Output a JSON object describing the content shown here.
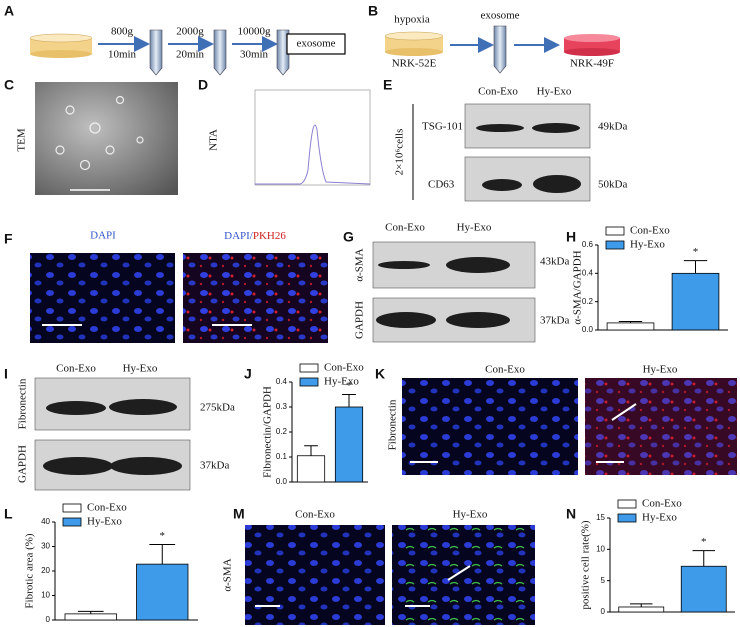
{
  "panels": {
    "A": {
      "label": "A",
      "steps": [
        {
          "speed": "800g",
          "time": "10min"
        },
        {
          "speed": "2000g",
          "time": "20min"
        },
        {
          "speed": "10000g",
          "time": "30min"
        }
      ],
      "product": "exosome"
    },
    "B": {
      "label": "B",
      "condition": "hypoxia",
      "source": "NRK-52E",
      "vehicle": "exosome",
      "target": "NRK-49F"
    },
    "C": {
      "label": "C",
      "method": "TEM"
    },
    "D": {
      "label": "D",
      "method": "NTA"
    },
    "E": {
      "label": "E",
      "groups": [
        "Con-Exo",
        "Hy-Exo"
      ],
      "amount": "2×10⁶cells",
      "markers": [
        {
          "name": "TSG-101",
          "size": "49kDa"
        },
        {
          "name": "CD63",
          "size": "50kDa"
        }
      ]
    },
    "F": {
      "label": "F",
      "stain1": "DAPI",
      "stain2a": "DAPI/",
      "stain2b": "PKH26"
    },
    "G": {
      "label": "G",
      "groups": [
        "Con-Exo",
        "Hy-Exo"
      ],
      "markers": [
        {
          "name": "α-SMA",
          "size": "43kDa"
        },
        {
          "name": "GAPDH",
          "size": "37kDa"
        }
      ]
    },
    "I": {
      "label": "I",
      "groups": [
        "Con-Exo",
        "Hy-Exo"
      ],
      "markers": [
        {
          "name": "Fibronectin",
          "size": "275kDa"
        },
        {
          "name": "GAPDH",
          "size": "37kDa"
        }
      ]
    },
    "K": {
      "label": "K",
      "groups": [
        "Con-Exo",
        "Hy-Exo"
      ],
      "stain": "Fibronectin"
    },
    "M": {
      "label": "M",
      "groups": [
        "Con-Exo",
        "Hy-Exo"
      ],
      "stain": "α-SMA"
    }
  },
  "chart_data": [
    {
      "type": "bar",
      "panel": "H",
      "ylabel": "α-SMA/GAPDH",
      "ylim": [
        0,
        0.6
      ],
      "yticks": [
        {
          "value": 0,
          "label": "0.0"
        },
        {
          "value": 0.2,
          "label": "0.2"
        },
        {
          "value": 0.4,
          "label": "0.4"
        },
        {
          "value": 0.6,
          "label": "0.6"
        }
      ],
      "series": [
        {
          "name": "Con-Exo",
          "color": "#ffffff",
          "values": [
            0.05
          ],
          "errors": [
            0.01
          ]
        },
        {
          "name": "Hy-Exo",
          "color": "#3d9be9",
          "values": [
            0.4
          ],
          "errors": [
            0.09
          ]
        }
      ],
      "annotation": "*"
    },
    {
      "type": "bar",
      "panel": "J",
      "ylabel": "Fibronectin/GAPDH",
      "ylim": [
        0,
        0.4
      ],
      "yticks": [
        {
          "value": 0,
          "label": "0.0"
        },
        {
          "value": 0.1,
          "label": "0.1"
        },
        {
          "value": 0.2,
          "label": "0.2"
        },
        {
          "value": 0.3,
          "label": "0.3"
        },
        {
          "value": 0.4,
          "label": "0.4"
        }
      ],
      "series": [
        {
          "name": "Con-Exo",
          "color": "#ffffff",
          "values": [
            0.105
          ],
          "errors": [
            0.04
          ]
        },
        {
          "name": "Hy-Exo",
          "color": "#3d9be9",
          "values": [
            0.3
          ],
          "errors": [
            0.05
          ]
        }
      ],
      "annotation": "*"
    },
    {
      "type": "bar",
      "panel": "L",
      "ylabel": "Fibrotic area (%)",
      "ylim": [
        0,
        40
      ],
      "yticks": [
        0,
        10,
        20,
        30,
        40
      ],
      "series": [
        {
          "name": "Con-Exo",
          "color": "#ffffff",
          "values": [
            2.5
          ],
          "errors": [
            1
          ]
        },
        {
          "name": "Hy-Exo",
          "color": "#3d9be9",
          "values": [
            22.8
          ],
          "errors": [
            8
          ]
        }
      ],
      "annotation": "*"
    },
    {
      "type": "bar",
      "panel": "N",
      "ylabel": "positive cell rate(%)",
      "ylim": [
        0,
        15
      ],
      "yticks": [
        0,
        5,
        10,
        15
      ],
      "series": [
        {
          "name": "Con-Exo",
          "color": "#ffffff",
          "values": [
            0.8
          ],
          "errors": [
            0.5
          ]
        },
        {
          "name": "Hy-Exo",
          "color": "#3d9be9",
          "values": [
            7.3
          ],
          "errors": [
            2.5
          ]
        }
      ],
      "annotation": "*"
    }
  ]
}
